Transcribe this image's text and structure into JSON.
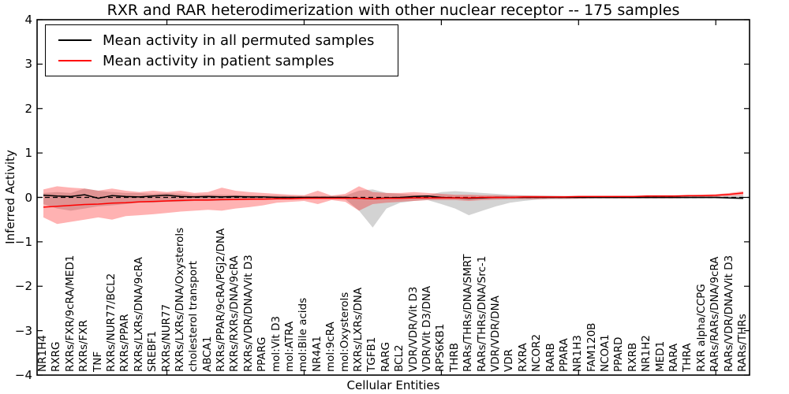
{
  "title": "RXR and RAR heterodimerization with other nuclear receptor -- 175 samples",
  "legend": {
    "items": [
      {
        "label": "Mean activity in all permuted samples",
        "color": "#000000"
      },
      {
        "label": "Mean activity in patient samples",
        "color": "#ff0000"
      }
    ]
  },
  "chart_data": {
    "type": "line",
    "title": "RXR and RAR heterodimerization with other nuclear receptor -- 175 samples",
    "xlabel": "Cellular Entities",
    "ylabel": "Inferred Activity",
    "ylim": [
      -4,
      4
    ],
    "yticks": [
      4,
      3,
      2,
      1,
      0,
      -1,
      -2,
      -3,
      -4
    ],
    "xtick_indices": [
      9,
      19,
      29,
      39,
      49
    ],
    "grid": false,
    "legend_position": "upper left",
    "zero_line": {
      "style": "dashed",
      "color": "#000000",
      "y": 0
    },
    "categories": [
      "NR1H4",
      "RXRG",
      "RXRs/FXR/9cRA/MED1",
      "RXRs/FXR",
      "TNF",
      "RXRs/NUR77/BCL2",
      "RXRs/PPAR",
      "RXRs/LXRs/DNA/9cRA",
      "SREBF1",
      "RXRs/NUR77",
      "RXRs/LXRs/DNA/Oxysterols",
      "cholesterol transport",
      "ABCA1",
      "RXRs/PPAR/9cRA/PGJ2/DNA",
      "RXRs/RXRs/DNA/9cRA",
      "RXRs/VDR/DNA/Vit D3",
      "PPARG",
      "mol:Vit D3",
      "mol:ATRA",
      "mol:Bile acids",
      "NR4A1",
      "mol:9cRA",
      "mol:Oxysterols",
      "RXRs/LXRs/DNA",
      "TGFB1",
      "RARG",
      "BCL2",
      "VDR/VDR/Vit D3",
      "VDR/Vit D3/DNA",
      "RPS6KB1",
      "THRB",
      "RARs/THRs/DNA/SMRT",
      "RARs/THRs/DNA/Src-1",
      "VDR/VDR/DNA",
      "VDR",
      "RXRA",
      "NCOR2",
      "RARB",
      "PPARA",
      "NR1H3",
      "FAM120B",
      "NCOA1",
      "PPARD",
      "RXRB",
      "NR1H2",
      "MED1",
      "RARA",
      "THRA",
      "RXR alpha/CCPG",
      "RARs/RARs/DNA/9cRA",
      "RARs/VDR/DNA/Vit D3",
      "RARs/THRs"
    ],
    "series": [
      {
        "name": "Mean activity in all permuted samples",
        "color": "#000000",
        "values": [
          0.05,
          0.03,
          0.02,
          0.06,
          -0.02,
          0.04,
          0.02,
          0.01,
          0.03,
          0.05,
          0.02,
          0.01,
          0.02,
          0.01,
          0.02,
          0.01,
          0.01,
          0,
          0,
          0,
          0,
          0,
          0,
          -0.02,
          -0.03,
          -0.01,
          0,
          0.02,
          0.03,
          0,
          -0.01,
          -0.02,
          -0.01,
          0,
          0,
          0,
          0,
          0,
          0,
          0,
          0,
          0,
          0,
          0,
          0,
          0,
          0,
          0,
          0,
          0,
          -0.01,
          -0.02
        ]
      },
      {
        "name": "Mean activity in patient samples",
        "color": "#ff0000",
        "values": [
          -0.22,
          -0.2,
          -0.18,
          -0.16,
          -0.15,
          -0.13,
          -0.12,
          -0.1,
          -0.09,
          -0.08,
          -0.07,
          -0.06,
          -0.06,
          -0.05,
          -0.05,
          -0.04,
          -0.04,
          -0.03,
          -0.03,
          -0.02,
          -0.02,
          -0.02,
          -0.02,
          -0.02,
          -0.03,
          -0.02,
          -0.02,
          -0.01,
          -0.01,
          -0.01,
          -0.01,
          -0.01,
          0,
          0,
          0,
          0.01,
          0.01,
          0.01,
          0.01,
          0.02,
          0.02,
          0.02,
          0.02,
          0.02,
          0.03,
          0.03,
          0.03,
          0.04,
          0.04,
          0.05,
          0.07,
          0.1
        ]
      }
    ],
    "bands": [
      {
        "name": "permuted samples range",
        "color": "#808080",
        "opacity": 0.35,
        "upper": [
          0.1,
          0.12,
          0.1,
          0.2,
          0.15,
          0.12,
          0.1,
          0.1,
          0.08,
          0.1,
          0.08,
          0.06,
          0.06,
          0.06,
          0.05,
          0.05,
          0.04,
          0.04,
          0.03,
          0.03,
          0.03,
          0.03,
          0.04,
          0.15,
          0.18,
          0.1,
          0.08,
          0.06,
          0.05,
          0.12,
          0.14,
          0.12,
          0.1,
          0.08,
          0.06,
          0.05,
          0.04,
          0.04,
          0.03,
          0.03,
          0.03,
          0.03,
          0.03,
          0.03,
          0.03,
          0.03,
          0.03,
          0.03,
          0.03,
          0.03,
          0.04,
          0.05
        ],
        "lower": [
          -0.15,
          -0.25,
          -0.3,
          -0.25,
          -0.2,
          -0.18,
          -0.15,
          -0.12,
          -0.12,
          -0.1,
          -0.1,
          -0.08,
          -0.08,
          -0.08,
          -0.06,
          -0.06,
          -0.05,
          -0.05,
          -0.04,
          -0.04,
          -0.03,
          -0.03,
          -0.04,
          -0.3,
          -0.68,
          -0.25,
          -0.12,
          -0.08,
          -0.06,
          -0.15,
          -0.25,
          -0.4,
          -0.3,
          -0.2,
          -0.12,
          -0.08,
          -0.05,
          -0.04,
          -0.04,
          -0.03,
          -0.03,
          -0.03,
          -0.03,
          -0.03,
          -0.03,
          -0.03,
          -0.03,
          -0.03,
          -0.03,
          -0.03,
          -0.04,
          -0.05
        ]
      },
      {
        "name": "patient samples range",
        "color": "#ff0000",
        "opacity": 0.3,
        "upper": [
          0.18,
          0.25,
          0.22,
          0.2,
          0.15,
          0.2,
          0.15,
          0.12,
          0.15,
          0.12,
          0.15,
          0.1,
          0.12,
          0.22,
          0.15,
          0.12,
          0.1,
          0.08,
          0.06,
          0.05,
          0.15,
          0.04,
          0.08,
          0.25,
          0.12,
          0.1,
          0.1,
          0.12,
          0.1,
          0.08,
          0.06,
          0.06,
          0.05,
          0.05,
          0.04,
          0.04,
          0.04,
          0.03,
          0.03,
          0.03,
          0.03,
          0.03,
          0.03,
          0.03,
          0.04,
          0.04,
          0.04,
          0.05,
          0.06,
          0.07,
          0.1,
          0.14
        ],
        "lower": [
          -0.45,
          -0.6,
          -0.55,
          -0.5,
          -0.45,
          -0.5,
          -0.42,
          -0.4,
          -0.38,
          -0.35,
          -0.32,
          -0.3,
          -0.28,
          -0.3,
          -0.25,
          -0.22,
          -0.18,
          -0.12,
          -0.1,
          -0.08,
          -0.15,
          -0.06,
          -0.1,
          -0.3,
          -0.15,
          -0.12,
          -0.1,
          -0.08,
          -0.06,
          -0.06,
          -0.06,
          -0.08,
          -0.06,
          -0.05,
          -0.04,
          -0.04,
          -0.04,
          -0.03,
          -0.03,
          -0.03,
          -0.02,
          -0.02,
          -0.02,
          -0.02,
          -0.02,
          -0.02,
          -0.02,
          -0.01,
          0,
          0.01,
          0.03,
          0.05
        ]
      }
    ]
  }
}
